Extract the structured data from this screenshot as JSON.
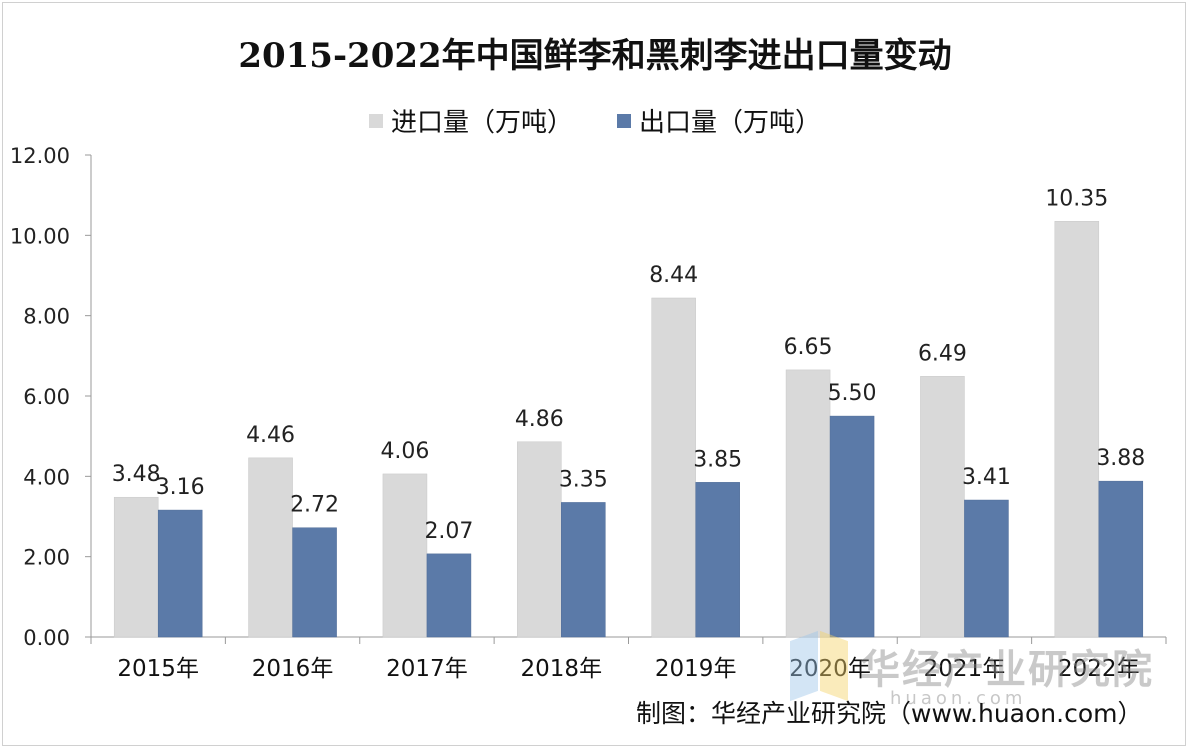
{
  "chart_data": {
    "type": "bar",
    "title": "2015-2022年中国鲜李和黑刺李进出口量变动",
    "categories": [
      "2015年",
      "2016年",
      "2017年",
      "2018年",
      "2019年",
      "2020年",
      "2021年",
      "2022年"
    ],
    "series": [
      {
        "name": "进口量（万吨）",
        "color": "#d9d9d9",
        "values": [
          3.48,
          4.46,
          4.06,
          4.86,
          8.44,
          6.65,
          6.49,
          10.35
        ]
      },
      {
        "name": "出口量（万吨）",
        "color": "#5b7aa8",
        "values": [
          3.16,
          2.72,
          2.07,
          3.35,
          3.85,
          5.5,
          3.41,
          3.88
        ]
      }
    ],
    "yticks": [
      "0.00",
      "2.00",
      "4.00",
      "6.00",
      "8.00",
      "10.00",
      "12.00"
    ],
    "ylim": [
      0,
      12
    ],
    "grid": false,
    "legend_position": "top"
  },
  "watermark": {
    "text": "华经产业研究院",
    "sub": "huaon.com"
  },
  "source": "制图：华经产业研究院（www.huaon.com）"
}
